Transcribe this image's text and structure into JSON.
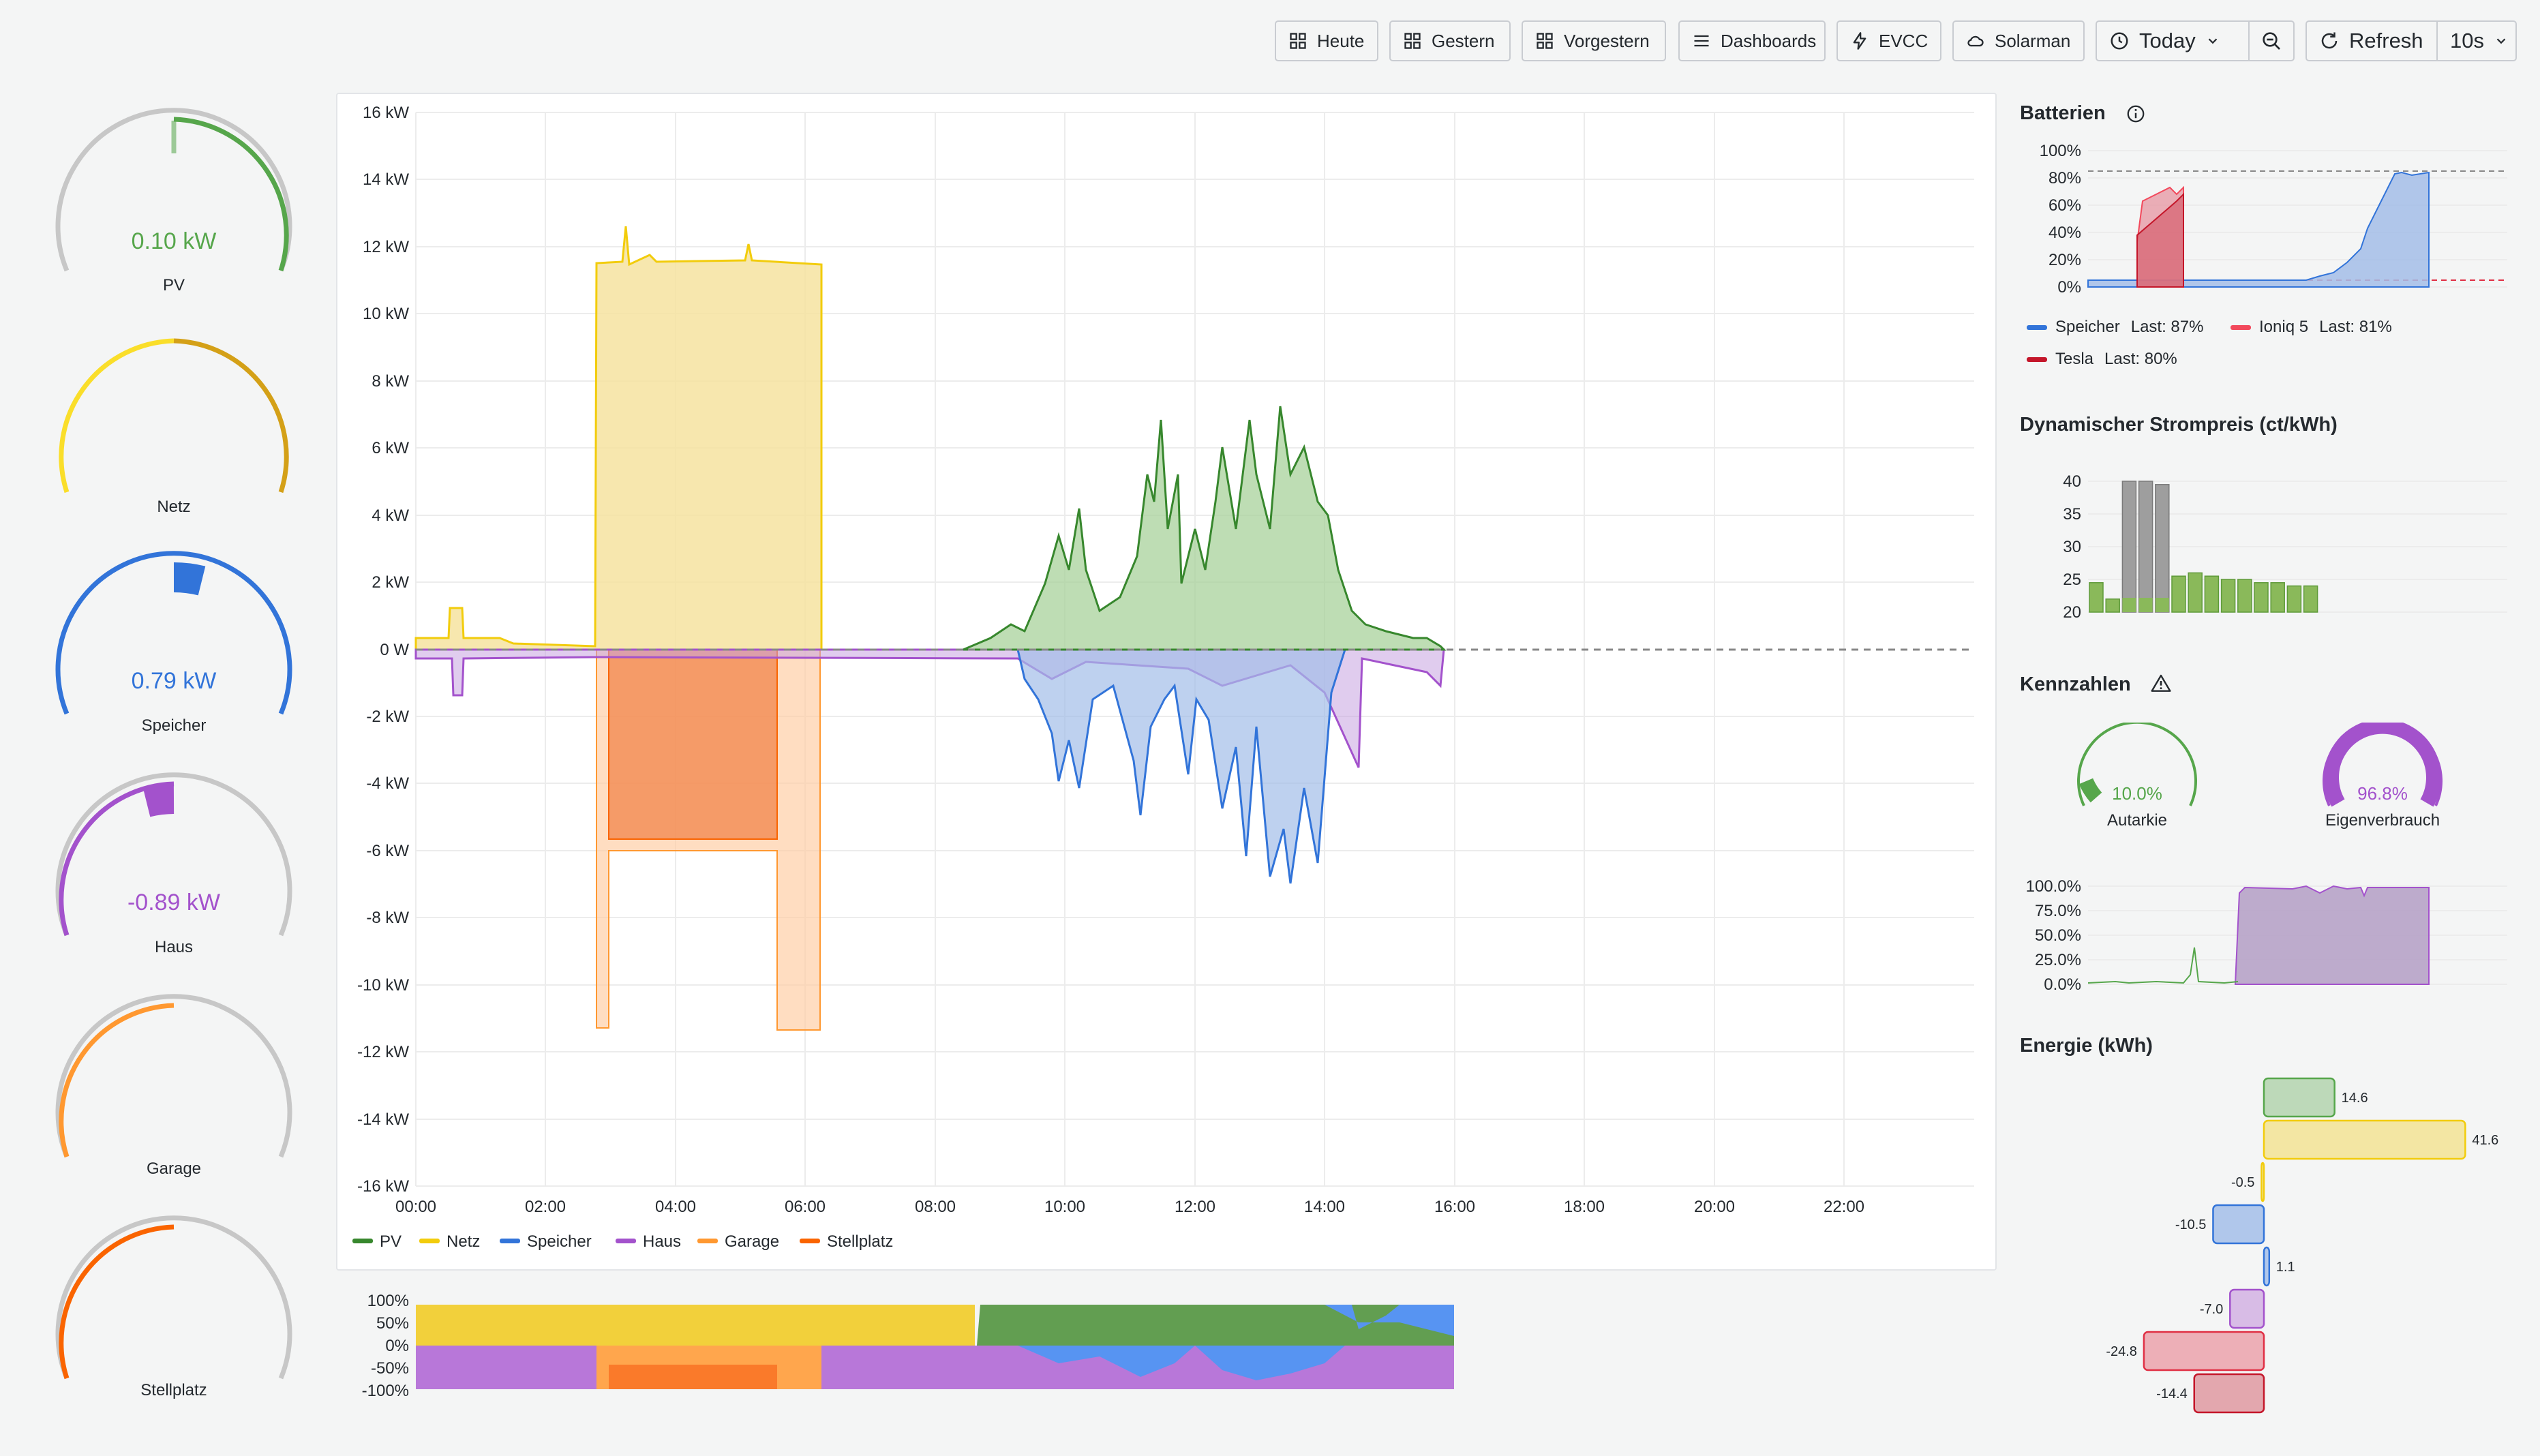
{
  "toolbar": {
    "heute": "Heute",
    "gestern": "Gestern",
    "vorgestern": "Vorgestern",
    "dashboards": "Dashboards",
    "evcc": "EVCC",
    "solarman": "Solarman",
    "time_range": "Today",
    "refresh": "Refresh",
    "interval": "10s"
  },
  "gauges": [
    {
      "label": "PV",
      "value": "0.10 kW",
      "color": "#56a64b"
    },
    {
      "label": "Netz",
      "value": "",
      "color": "#d4a017"
    },
    {
      "label": "Speicher",
      "value": "0.79 kW",
      "color": "#3274d9"
    },
    {
      "label": "Haus",
      "value": "-0.89 kW",
      "color": "#a352cc"
    },
    {
      "label": "Garage",
      "value": "",
      "color": "#ff9830"
    },
    {
      "label": "Stellplatz",
      "value": "",
      "color": "#fa6400"
    }
  ],
  "main_chart": {
    "y_ticks": [
      "16 kW",
      "14 kW",
      "12 kW",
      "10 kW",
      "8 kW",
      "6 kW",
      "4 kW",
      "2 kW",
      "0 W",
      "-2 kW",
      "-4 kW",
      "-6 kW",
      "-8 kW",
      "-10 kW",
      "-12 kW",
      "-14 kW",
      "-16 kW"
    ],
    "x_ticks": [
      "00:00",
      "02:00",
      "04:00",
      "06:00",
      "08:00",
      "10:00",
      "12:00",
      "14:00",
      "16:00",
      "18:00",
      "20:00",
      "22:00"
    ],
    "legend": [
      "PV",
      "Netz",
      "Speicher",
      "Haus",
      "Garage",
      "Stellplatz"
    ],
    "colors": {
      "pv": "#37872d",
      "netz": "#f2cc0c",
      "speicher": "#3274d9",
      "haus": "#a352cc",
      "garage": "#ff9830",
      "stellplatz": "#fa6400"
    }
  },
  "mini_chart": {
    "y_ticks": [
      "100%",
      "50%",
      "0%",
      "-50%",
      "-100%"
    ]
  },
  "batterien": {
    "title": "Batterien",
    "y_ticks": [
      "100%",
      "80%",
      "60%",
      "40%",
      "20%",
      "0%"
    ],
    "legend": [
      {
        "name": "Speicher",
        "last": "Last: 87%",
        "color": "#3274d9"
      },
      {
        "name": "Ioniq 5",
        "last": "Last: 81%",
        "color": "#f2495c"
      },
      {
        "name": "Tesla",
        "last": "Last: 80%",
        "color": "#c4162a"
      }
    ]
  },
  "strompreis": {
    "title": "Dynamischer Strompreis (ct/kWh)",
    "y_ticks": [
      "40",
      "35",
      "30",
      "25",
      "20"
    ],
    "bars": [
      {
        "v": 24.5,
        "c": "#8ab95a"
      },
      {
        "v": 22,
        "c": "#8ab95a"
      },
      {
        "v": 40,
        "c": "#9e9e9e"
      },
      {
        "v": 40,
        "c": "#9e9e9e"
      },
      {
        "v": 39.5,
        "c": "#9e9e9e"
      },
      {
        "v": 25.5,
        "c": "#8ab95a"
      },
      {
        "v": 26,
        "c": "#8ab95a"
      },
      {
        "v": 25.5,
        "c": "#8ab95a"
      },
      {
        "v": 25,
        "c": "#8ab95a"
      },
      {
        "v": 25,
        "c": "#8ab95a"
      },
      {
        "v": 24.5,
        "c": "#8ab95a"
      },
      {
        "v": 24.5,
        "c": "#8ab95a"
      },
      {
        "v": 24,
        "c": "#8ab95a"
      },
      {
        "v": 24,
        "c": "#8ab95a"
      }
    ]
  },
  "kennzahlen": {
    "title": "Kennzahlen",
    "autarkie": {
      "label": "Autarkie",
      "value": "10.0%",
      "percent": 10.0,
      "color": "#56a64b"
    },
    "eigenverbrauch": {
      "label": "Eigenverbrauch",
      "value": "96.8%",
      "percent": 96.8,
      "color": "#a352cc"
    },
    "y_ticks": [
      "100.0%",
      "75.0%",
      "50.0%",
      "25.0%",
      "0.0%"
    ]
  },
  "energie": {
    "title": "Energie (kWh)",
    "bars": [
      {
        "label": "14.6",
        "value": 14.6,
        "color": "#56a64b"
      },
      {
        "label": "41.6",
        "value": 41.6,
        "color": "#f2cc0c"
      },
      {
        "label": "-0.5",
        "value": -0.5,
        "color": "#f2cc0c"
      },
      {
        "label": "-10.5",
        "value": -10.5,
        "color": "#3274d9"
      },
      {
        "label": "1.1",
        "value": 1.1,
        "color": "#3274d9"
      },
      {
        "label": "-7.0",
        "value": -7.0,
        "color": "#a352cc"
      },
      {
        "label": "-24.8",
        "value": -24.8,
        "color": "#e02f44"
      },
      {
        "label": "-14.4",
        "value": -14.4,
        "color": "#c4162a"
      }
    ]
  }
}
